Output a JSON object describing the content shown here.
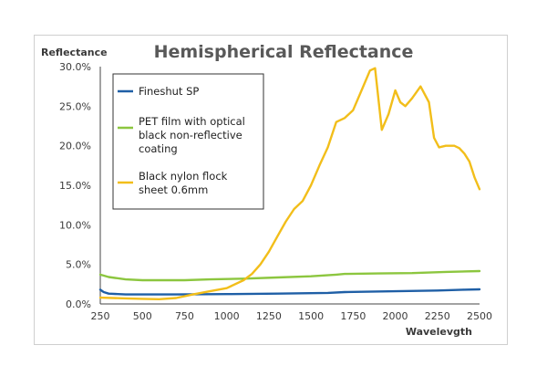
{
  "chart_data": {
    "type": "line",
    "title": "Hemispherical Reflectance",
    "ylabel": "Reflectance",
    "xlabel": "Wavelevgth",
    "xlim": [
      250,
      2500
    ],
    "ylim": [
      0,
      30
    ],
    "xticks": [
      "250",
      "500",
      "750",
      "1000",
      "1250",
      "1500",
      "1750",
      "2000",
      "2250",
      "2500"
    ],
    "yticks": [
      "0.0%",
      "5.0%",
      "10.0%",
      "15.0%",
      "20.0%",
      "25.0%",
      "30.0%"
    ],
    "legend_position": "top-left",
    "series": [
      {
        "name": "Fineshut SP",
        "color": "#1f5fa6",
        "x": [
          250,
          270,
          300,
          400,
          500,
          700,
          1000,
          1300,
          1600,
          1700,
          2000,
          2250,
          2400,
          2500
        ],
        "y": [
          1.8,
          1.5,
          1.3,
          1.2,
          1.2,
          1.2,
          1.25,
          1.3,
          1.4,
          1.5,
          1.6,
          1.7,
          1.8,
          1.85
        ]
      },
      {
        "name": "PET film with optical black non-reflective coating",
        "color": "#8cc63f",
        "x": [
          250,
          300,
          400,
          500,
          650,
          750,
          900,
          1100,
          1300,
          1500,
          1650,
          1700,
          1900,
          2100,
          2300,
          2500
        ],
        "y": [
          3.7,
          3.4,
          3.1,
          3.0,
          3.0,
          3.0,
          3.1,
          3.2,
          3.35,
          3.5,
          3.7,
          3.8,
          3.85,
          3.9,
          4.05,
          4.15
        ]
      },
      {
        "name": "Black nylon flock sheet 0.6mm",
        "color": "#f2be1a",
        "x": [
          250,
          400,
          500,
          600,
          700,
          800,
          900,
          1000,
          1100,
          1150,
          1200,
          1250,
          1300,
          1350,
          1400,
          1450,
          1500,
          1550,
          1600,
          1650,
          1700,
          1750,
          1800,
          1850,
          1880,
          1920,
          1960,
          2000,
          2030,
          2060,
          2100,
          2150,
          2200,
          2230,
          2260,
          2300,
          2350,
          2380,
          2410,
          2440,
          2470,
          2500
        ],
        "y": [
          0.8,
          0.7,
          0.65,
          0.6,
          0.75,
          1.2,
          1.6,
          2.0,
          3.0,
          3.8,
          5.0,
          6.6,
          8.5,
          10.4,
          12.0,
          13.0,
          15.0,
          17.5,
          19.8,
          23.0,
          23.5,
          24.5,
          27.0,
          29.5,
          29.8,
          22.0,
          24.0,
          27.0,
          25.5,
          25.0,
          26.0,
          27.5,
          25.5,
          21.0,
          19.8,
          20.0,
          20.0,
          19.7,
          19.0,
          18.0,
          16.0,
          14.5
        ]
      }
    ]
  }
}
